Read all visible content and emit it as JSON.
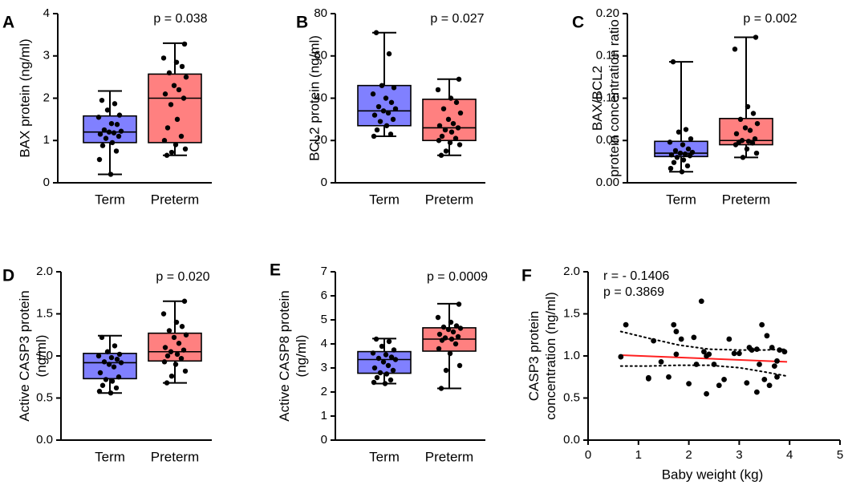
{
  "colors": {
    "term": "#8080ff",
    "preterm": "#ff8080",
    "regression": "#ff2020",
    "axis": "#000000"
  },
  "chart_data": [
    {
      "type": "box",
      "panel": "A",
      "ylabel": "BAX protein (ng/ml)",
      "ylim": [
        0,
        4
      ],
      "yticks": [
        "0",
        "1",
        "2",
        "3",
        "4"
      ],
      "p_value": "p = 0.038",
      "groups": [
        {
          "name": "Term",
          "color": "term",
          "min": 0.2,
          "q1": 0.95,
          "median": 1.2,
          "q3": 1.58,
          "max": 2.17,
          "points": [
            1.95,
            1.87,
            1.72,
            1.6,
            1.55,
            1.4,
            1.38,
            1.25,
            1.22,
            1.2,
            1.18,
            1.15,
            1.1,
            1.05,
            0.95,
            0.88,
            0.75,
            0.55,
            0.2
          ]
        },
        {
          "name": "Preterm",
          "color": "preterm",
          "min": 0.65,
          "q1": 0.95,
          "median": 2.0,
          "q3": 2.57,
          "max": 3.3,
          "points": [
            3.28,
            2.95,
            2.85,
            2.75,
            2.6,
            2.5,
            2.3,
            2.2,
            2.1,
            2.0,
            1.85,
            1.5,
            1.3,
            1.1,
            1.0,
            0.9,
            0.8,
            0.72,
            0.65
          ]
        }
      ]
    },
    {
      "type": "box",
      "panel": "B",
      "ylabel": "BCL2 protein (ng/ml)",
      "ylim": [
        0,
        80
      ],
      "yticks": [
        "0",
        "20",
        "40",
        "60",
        "80"
      ],
      "p_value": "p = 0.027",
      "groups": [
        {
          "name": "Term",
          "color": "term",
          "min": 22,
          "q1": 27,
          "median": 34,
          "q3": 46,
          "max": 71,
          "points": [
            71,
            61,
            46,
            45,
            42,
            40,
            38,
            36,
            35,
            34,
            33,
            32,
            30,
            29,
            27,
            25,
            23,
            22
          ]
        },
        {
          "name": "Preterm",
          "color": "preterm",
          "min": 13,
          "q1": 20,
          "median": 26,
          "q3": 39.5,
          "max": 49,
          "points": [
            49,
            44,
            40,
            38,
            35,
            33,
            30,
            28,
            27,
            26,
            25,
            24,
            22,
            21,
            20,
            19,
            18,
            15,
            13
          ]
        }
      ]
    },
    {
      "type": "box",
      "panel": "C",
      "ylabel": "BAX/BCL2\nprotein concentration ratio",
      "ylim": [
        0,
        0.2
      ],
      "yticks": [
        "0.00",
        "0.05",
        "0.10",
        "0.15",
        "0.20"
      ],
      "p_value": "p = 0.002",
      "groups": [
        {
          "name": "Term",
          "color": "term",
          "min": 0.013,
          "q1": 0.031,
          "median": 0.035,
          "q3": 0.049,
          "max": 0.143,
          "points": [
            0.143,
            0.063,
            0.06,
            0.052,
            0.048,
            0.045,
            0.04,
            0.038,
            0.036,
            0.035,
            0.034,
            0.033,
            0.032,
            0.03,
            0.027,
            0.024,
            0.02,
            0.017,
            0.013
          ]
        },
        {
          "name": "Preterm",
          "color": "preterm",
          "min": 0.03,
          "q1": 0.045,
          "median": 0.05,
          "q3": 0.076,
          "max": 0.172,
          "points": [
            0.172,
            0.158,
            0.09,
            0.082,
            0.075,
            0.07,
            0.065,
            0.062,
            0.058,
            0.052,
            0.05,
            0.049,
            0.048,
            0.047,
            0.045,
            0.04,
            0.035,
            0.03
          ]
        }
      ]
    },
    {
      "type": "box",
      "panel": "D",
      "ylabel": "Active CASP3 protein\n(ng/ml)",
      "ylim": [
        0,
        2
      ],
      "yticks": [
        "0.0",
        "0.5",
        "1.0",
        "1.5",
        "2.0"
      ],
      "p_value": "p = 0.020",
      "groups": [
        {
          "name": "Term",
          "color": "term",
          "min": 0.56,
          "q1": 0.73,
          "median": 0.92,
          "q3": 1.03,
          "max": 1.24,
          "points": [
            1.22,
            1.12,
            1.05,
            1.02,
            1.0,
            0.98,
            0.96,
            0.93,
            0.92,
            0.9,
            0.87,
            0.8,
            0.75,
            0.72,
            0.7,
            0.65,
            0.62,
            0.58,
            0.56
          ]
        },
        {
          "name": "Preterm",
          "color": "preterm",
          "min": 0.68,
          "q1": 0.94,
          "median": 1.05,
          "q3": 1.27,
          "max": 1.65,
          "points": [
            1.65,
            1.5,
            1.4,
            1.35,
            1.3,
            1.25,
            1.22,
            1.15,
            1.1,
            1.07,
            1.05,
            1.02,
            1.0,
            0.97,
            0.93,
            0.9,
            0.82,
            0.76,
            0.68
          ]
        }
      ]
    },
    {
      "type": "box",
      "panel": "E",
      "ylabel": "Active CASP8 protein\n(ng/ml)",
      "ylim": [
        0,
        7
      ],
      "yticks": [
        "0",
        "1",
        "2",
        "3",
        "4",
        "5",
        "6",
        "7"
      ],
      "p_value": "p = 0.0009",
      "groups": [
        {
          "name": "Term",
          "color": "term",
          "min": 2.35,
          "q1": 2.78,
          "median": 3.35,
          "q3": 3.68,
          "max": 4.22,
          "points": [
            4.2,
            4.1,
            3.9,
            3.75,
            3.62,
            3.55,
            3.45,
            3.4,
            3.35,
            3.25,
            3.1,
            3.0,
            2.9,
            2.8,
            2.75,
            2.6,
            2.5,
            2.4,
            2.35
          ]
        },
        {
          "name": "Preterm",
          "color": "preterm",
          "min": 2.15,
          "q1": 3.7,
          "median": 4.2,
          "q3": 4.67,
          "max": 5.67,
          "points": [
            5.65,
            5.1,
            4.9,
            4.75,
            4.7,
            4.65,
            4.6,
            4.5,
            4.4,
            4.3,
            4.25,
            4.2,
            4.15,
            4.0,
            3.8,
            3.6,
            3.1,
            2.9,
            2.15
          ]
        }
      ]
    },
    {
      "type": "scatter",
      "panel": "F",
      "xlabel": "Baby weight (kg)",
      "ylabel": "CASP3 protein\nconcentration (ng/ml)",
      "xlim": [
        0,
        5
      ],
      "ylim": [
        0,
        2
      ],
      "xticks": [
        "0",
        "1",
        "2",
        "3",
        "4",
        "5"
      ],
      "yticks": [
        "0.0",
        "0.5",
        "1.0",
        "1.5",
        "2.0"
      ],
      "r_label": "r = - 0.1406",
      "p_value": "p = 0.3869",
      "regression": {
        "x": [
          0.65,
          3.95
        ],
        "y": [
          1.01,
          0.93
        ]
      },
      "ci_upper": {
        "x": [
          0.65,
          1.2,
          1.8,
          2.4,
          3.0,
          3.5,
          3.95
        ],
        "y": [
          1.29,
          1.21,
          1.13,
          1.08,
          1.07,
          1.07,
          1.08
        ]
      },
      "ci_lower": {
        "x": [
          0.65,
          1.2,
          1.8,
          2.4,
          3.0,
          3.5,
          3.95
        ],
        "y": [
          0.88,
          0.88,
          0.89,
          0.89,
          0.86,
          0.81,
          0.76
        ]
      },
      "points": [
        [
          0.65,
          0.99
        ],
        [
          0.75,
          1.37
        ],
        [
          1.2,
          0.74
        ],
        [
          1.2,
          0.73
        ],
        [
          1.3,
          1.18
        ],
        [
          1.45,
          0.93
        ],
        [
          1.6,
          0.75
        ],
        [
          1.7,
          1.37
        ],
        [
          1.75,
          1.29
        ],
        [
          1.75,
          1.02
        ],
        [
          1.85,
          1.2
        ],
        [
          2.0,
          0.67
        ],
        [
          2.1,
          1.22
        ],
        [
          2.15,
          0.9
        ],
        [
          2.25,
          1.65
        ],
        [
          2.3,
          1.05
        ],
        [
          2.35,
          1.0
        ],
        [
          2.35,
          0.55
        ],
        [
          2.4,
          1.02
        ],
        [
          2.5,
          0.9
        ],
        [
          2.6,
          0.65
        ],
        [
          2.7,
          0.72
        ],
        [
          2.8,
          1.2
        ],
        [
          2.9,
          1.03
        ],
        [
          3.0,
          1.03
        ],
        [
          3.15,
          0.68
        ],
        [
          3.2,
          1.1
        ],
        [
          3.25,
          1.07
        ],
        [
          3.35,
          1.08
        ],
        [
          3.35,
          0.57
        ],
        [
          3.4,
          0.9
        ],
        [
          3.45,
          1.37
        ],
        [
          3.5,
          0.72
        ],
        [
          3.55,
          1.24
        ],
        [
          3.6,
          0.65
        ],
        [
          3.65,
          1.1
        ],
        [
          3.7,
          0.88
        ],
        [
          3.75,
          0.94
        ],
        [
          3.75,
          0.75
        ],
        [
          3.8,
          1.07
        ],
        [
          3.9,
          1.05
        ]
      ]
    }
  ]
}
